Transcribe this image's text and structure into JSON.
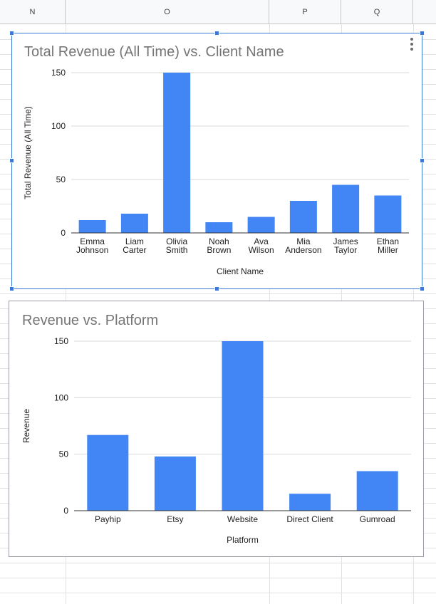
{
  "sheet": {
    "columns": [
      "N",
      "O",
      "P",
      "Q"
    ]
  },
  "chart_data": [
    {
      "type": "bar",
      "title": "Total Revenue (All Time) vs. Client Name",
      "xlabel": "Client Name",
      "ylabel": "Total Revenue (All Time)",
      "categories": [
        "Emma Johnson",
        "Liam Carter",
        "Olivia Smith",
        "Noah Brown",
        "Ava Wilson",
        "Mia Anderson",
        "James Taylor",
        "Ethan Miller"
      ],
      "values": [
        12,
        18,
        150,
        10,
        15,
        30,
        45,
        35
      ],
      "ylim": [
        0,
        150
      ],
      "yticks": [
        "0",
        "50",
        "100",
        "150"
      ],
      "grid": true,
      "color": "#4285f4",
      "selected": true
    },
    {
      "type": "bar",
      "title": "Revenue vs. Platform",
      "xlabel": "Platform",
      "ylabel": "Revenue",
      "categories": [
        "Payhip",
        "Etsy",
        "Website",
        "Direct Client",
        "Gumroad"
      ],
      "values": [
        67,
        48,
        150,
        15,
        35
      ],
      "ylim": [
        0,
        150
      ],
      "yticks": [
        "0",
        "50",
        "100",
        "150"
      ],
      "grid": true,
      "color": "#4285f4",
      "selected": false
    }
  ]
}
